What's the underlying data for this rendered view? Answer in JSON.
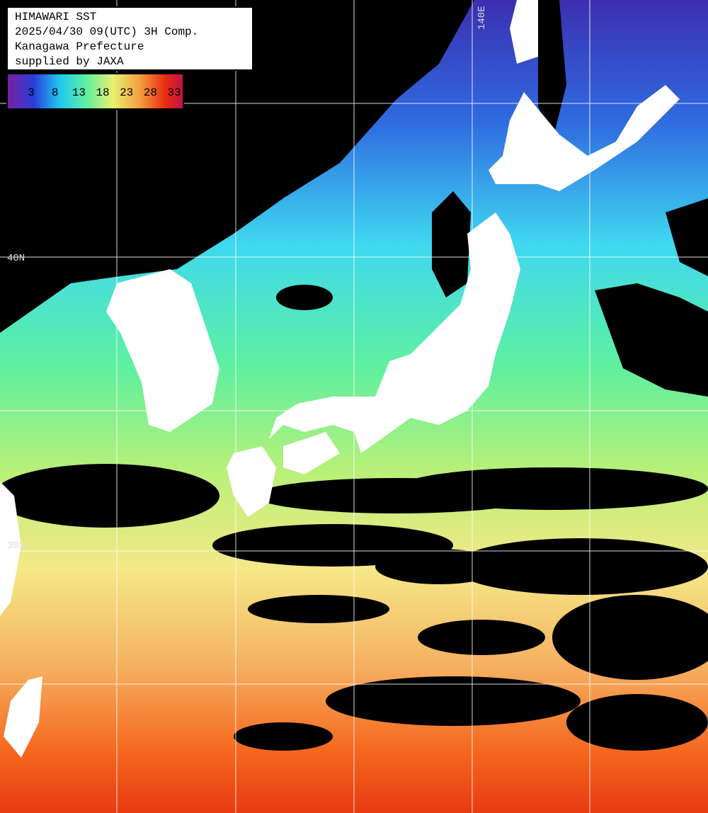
{
  "header": {
    "lines": [
      "HIMAWARI SST",
      "2025/04/30 09(UTC) 3H Comp.",
      "Kanagawa Prefecture",
      "supplied by JAXA"
    ]
  },
  "colorbar": {
    "ticks": [
      3,
      8,
      13,
      18,
      23,
      28,
      33
    ]
  },
  "grid_labels": {
    "lon": [
      "140E"
    ],
    "lat": [
      "40N",
      "30N"
    ]
  }
}
